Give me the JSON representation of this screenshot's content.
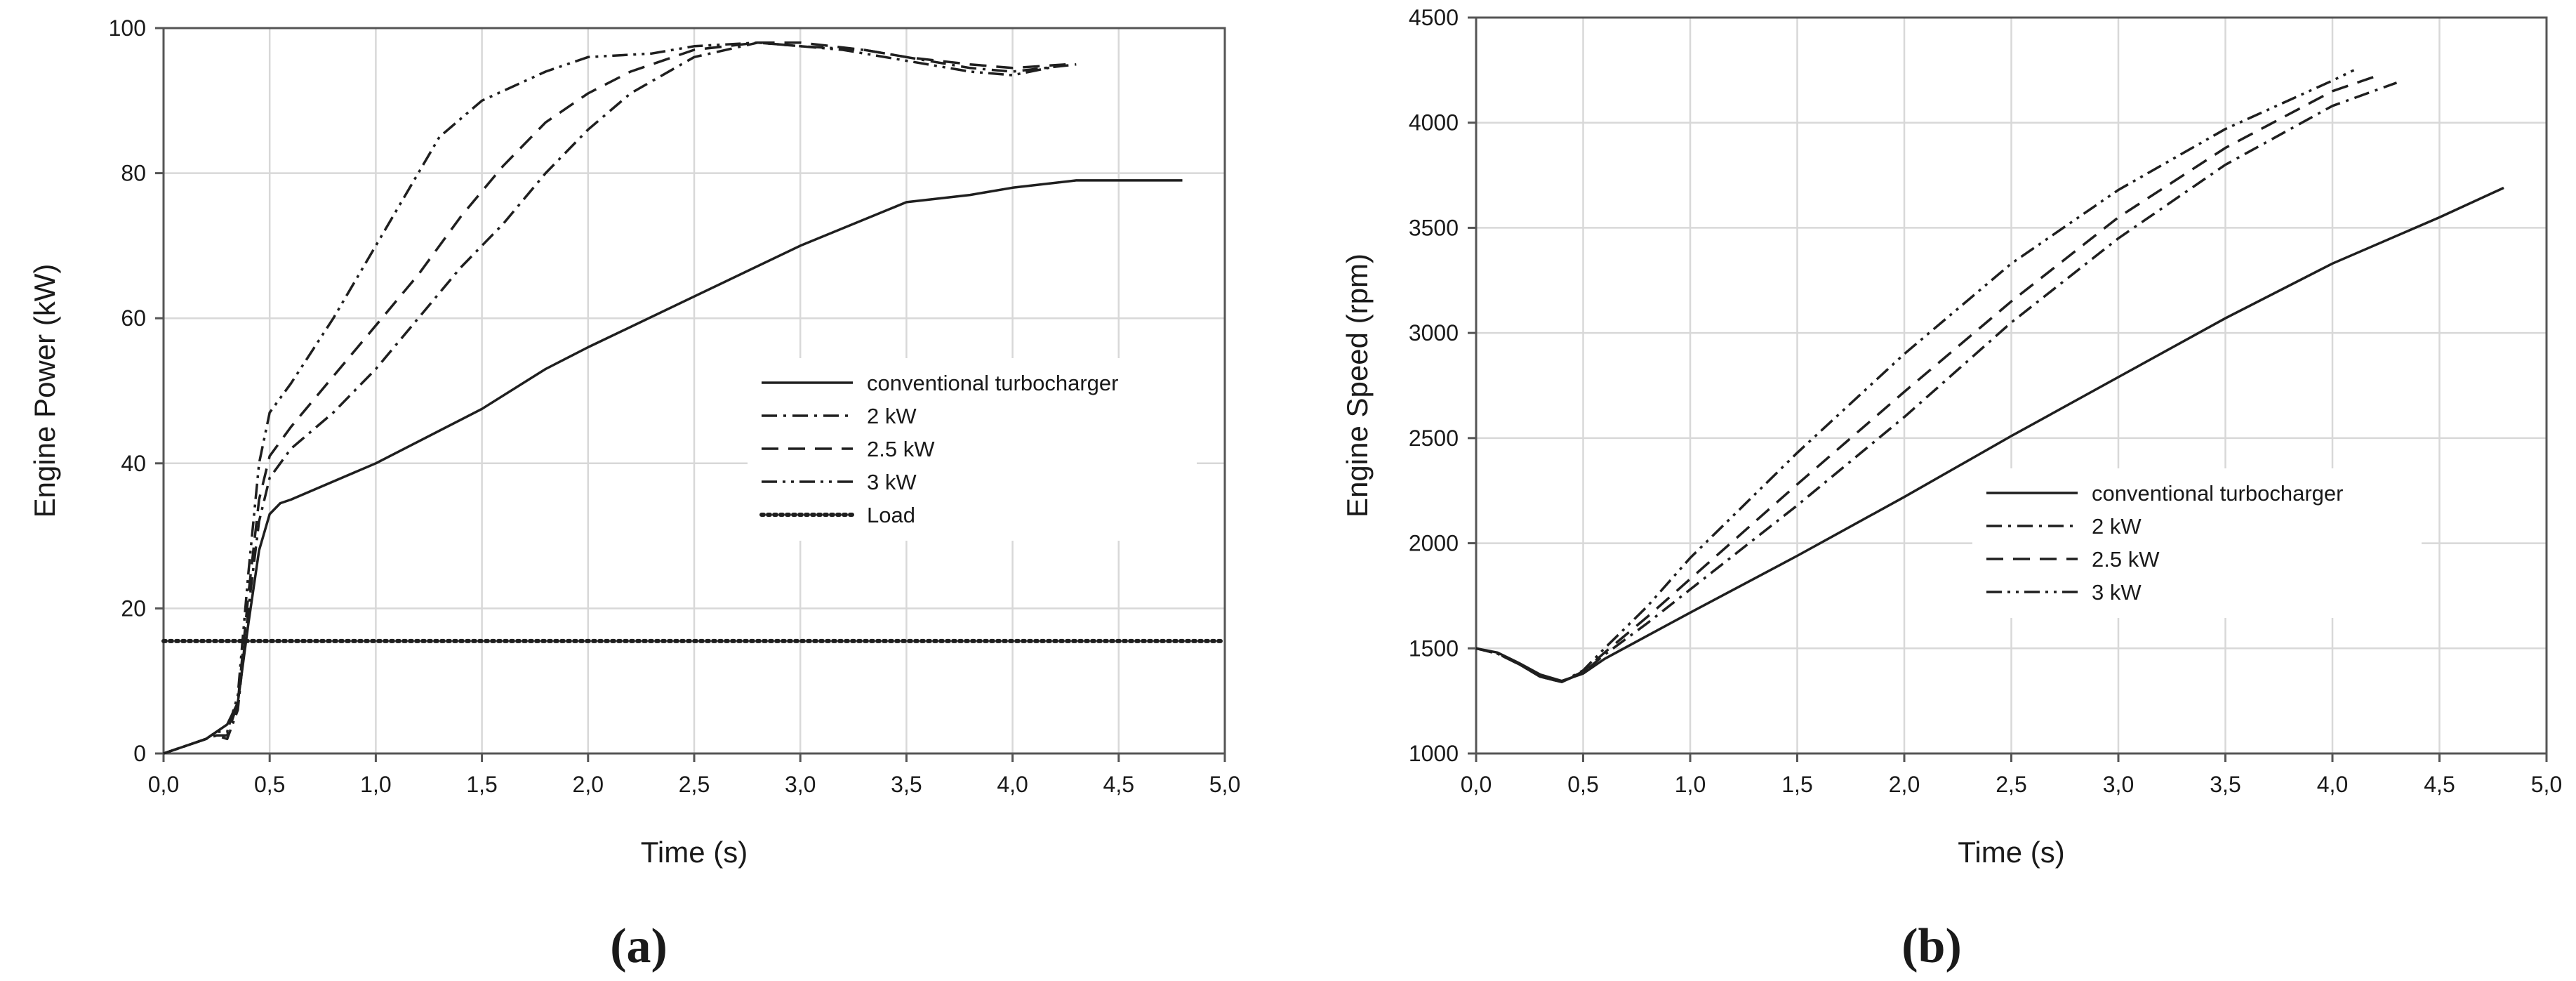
{
  "chart_data": [
    {
      "type": "line",
      "panel_label": "(a)",
      "xlabel": "Time (s)",
      "ylabel": "Engine Power (kW)",
      "xlim": [
        0,
        5
      ],
      "ylim": [
        0,
        100
      ],
      "x_ticks": [
        "0,0",
        "0,5",
        "1,0",
        "1,5",
        "2,0",
        "2,5",
        "3,0",
        "3,5",
        "4,0",
        "4,5",
        "5,0"
      ],
      "y_ticks": [
        "0",
        "20",
        "40",
        "60",
        "80",
        "100"
      ],
      "grid": true,
      "legend_position": "center-right",
      "series": [
        {
          "name": "conventional turbocharger",
          "style": "solid",
          "x": [
            0,
            0.1,
            0.2,
            0.25,
            0.3,
            0.35,
            0.4,
            0.45,
            0.5,
            0.55,
            0.6,
            0.8,
            1.0,
            1.2,
            1.4,
            1.5,
            1.8,
            2.0,
            2.5,
            3.0,
            3.5,
            3.8,
            4.0,
            4.3,
            4.8
          ],
          "y": [
            0,
            1,
            2,
            3,
            4,
            7,
            18,
            28,
            33,
            34.5,
            35,
            37.5,
            40,
            43,
            46,
            47.5,
            53,
            56,
            63,
            70,
            76,
            77,
            78,
            79,
            79
          ]
        },
        {
          "name": "2 kW",
          "style": "dash-dot",
          "x": [
            0,
            0.1,
            0.2,
            0.25,
            0.3,
            0.35,
            0.4,
            0.45,
            0.5,
            0.55,
            0.6,
            0.8,
            1.0,
            1.2,
            1.4,
            1.6,
            1.8,
            2.0,
            2.2,
            2.5,
            2.8,
            3.0,
            3.3,
            3.5,
            3.8,
            4.0,
            4.3
          ],
          "y": [
            0,
            1,
            2,
            2.5,
            2,
            6,
            20,
            32,
            38,
            40,
            42,
            47,
            53,
            60,
            67,
            73,
            80,
            86,
            91,
            96,
            98,
            97.5,
            97,
            96,
            94.5,
            94,
            95
          ]
        },
        {
          "name": "2.5 kW",
          "style": "dashed",
          "x": [
            0,
            0.1,
            0.2,
            0.25,
            0.3,
            0.35,
            0.4,
            0.45,
            0.5,
            0.55,
            0.6,
            0.8,
            1.0,
            1.2,
            1.4,
            1.6,
            1.8,
            2.0,
            2.2,
            2.5,
            2.8,
            3.0,
            3.3,
            3.5,
            3.8,
            4.0,
            4.25
          ],
          "y": [
            0,
            1,
            2,
            2.5,
            2.5,
            7,
            22,
            35,
            41,
            43,
            45,
            52,
            59,
            66,
            74,
            81,
            87,
            91,
            94,
            97,
            98,
            98,
            97,
            96,
            95,
            94.5,
            95
          ]
        },
        {
          "name": "3 kW",
          "style": "dash-dot-dot",
          "x": [
            0,
            0.1,
            0.2,
            0.25,
            0.3,
            0.35,
            0.4,
            0.45,
            0.5,
            0.55,
            0.6,
            0.8,
            1.0,
            1.2,
            1.3,
            1.5,
            1.8,
            2.0,
            2.3,
            2.5,
            2.8,
            3.0,
            3.2,
            3.5,
            3.8,
            4.0,
            4.25
          ],
          "y": [
            0,
            1,
            2,
            3,
            3,
            8,
            25,
            40,
            47,
            49,
            51,
            60,
            70,
            80,
            85,
            90,
            94,
            96,
            96.5,
            97.5,
            98,
            97.5,
            97,
            95.5,
            94,
            93.5,
            95
          ]
        },
        {
          "name": "Load",
          "style": "dotted",
          "x": [
            0,
            5
          ],
          "y": [
            15.5,
            15.5
          ]
        }
      ]
    },
    {
      "type": "line",
      "panel_label": "(b)",
      "xlabel": "Time (s)",
      "ylabel": "Engine Speed (rpm)",
      "xlim": [
        0,
        5
      ],
      "ylim": [
        1000,
        4500
      ],
      "x_ticks": [
        "0,0",
        "0,5",
        "1,0",
        "1,5",
        "2,0",
        "2,5",
        "3,0",
        "3,5",
        "4,0",
        "4,5",
        "5,0"
      ],
      "y_ticks": [
        "1000",
        "1500",
        "2000",
        "2500",
        "3000",
        "3500",
        "4000",
        "4500"
      ],
      "grid": true,
      "legend_position": "center-right",
      "series": [
        {
          "name": "conventional turbocharger",
          "style": "solid",
          "x": [
            0,
            0.1,
            0.2,
            0.3,
            0.4,
            0.5,
            0.6,
            0.8,
            1.0,
            1.5,
            2.0,
            2.5,
            3.0,
            3.5,
            4.0,
            4.5,
            4.8
          ],
          "y": [
            1500,
            1480,
            1430,
            1375,
            1345,
            1380,
            1450,
            1560,
            1670,
            1940,
            2220,
            2510,
            2790,
            3070,
            3330,
            3550,
            3690
          ]
        },
        {
          "name": "2 kW",
          "style": "dash-dot",
          "x": [
            0,
            0.1,
            0.2,
            0.3,
            0.4,
            0.5,
            0.6,
            0.8,
            1.0,
            1.5,
            2.0,
            2.5,
            3.0,
            3.5,
            4.0,
            4.3
          ],
          "y": [
            1500,
            1475,
            1425,
            1365,
            1340,
            1385,
            1470,
            1620,
            1780,
            2180,
            2600,
            3050,
            3450,
            3800,
            4080,
            4190
          ]
        },
        {
          "name": "2.5 kW",
          "style": "dashed",
          "x": [
            0,
            0.1,
            0.2,
            0.3,
            0.4,
            0.5,
            0.6,
            0.8,
            1.0,
            1.5,
            2.0,
            2.5,
            3.0,
            3.5,
            4.0,
            4.2
          ],
          "y": [
            1500,
            1475,
            1425,
            1365,
            1340,
            1390,
            1480,
            1650,
            1830,
            2280,
            2720,
            3150,
            3550,
            3880,
            4150,
            4220
          ]
        },
        {
          "name": "3 kW",
          "style": "dash-dot-dot",
          "x": [
            0,
            0.1,
            0.2,
            0.3,
            0.4,
            0.5,
            0.6,
            0.8,
            1.0,
            1.5,
            2.0,
            2.5,
            3.0,
            3.5,
            4.0,
            4.1
          ],
          "y": [
            1500,
            1475,
            1425,
            1365,
            1340,
            1395,
            1500,
            1700,
            1930,
            2430,
            2900,
            3330,
            3680,
            3970,
            4200,
            4250
          ]
        }
      ]
    }
  ]
}
